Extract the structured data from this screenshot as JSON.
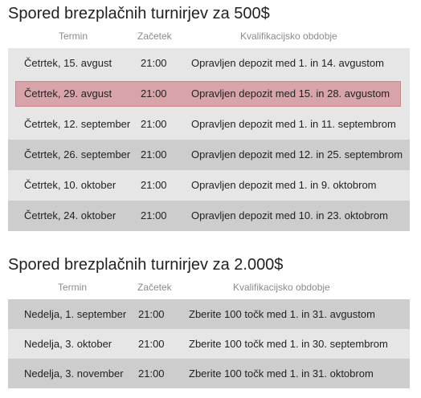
{
  "section1": {
    "title": "Spored brezplačnih turnirjev za 500$",
    "headers": [
      "Termin",
      "Začetek",
      "Kvalifikacijsko obdobje"
    ],
    "rows": [
      {
        "date": "Četrtek, 15. avgust",
        "time": "21:00",
        "period": "Opravljen depozit med 1. in 14. avgustom"
      },
      {
        "date": "Četrtek, 29. avgust",
        "time": "21:00",
        "period": "Opravljen depozit med 15. in 28. avgustom"
      },
      {
        "date": "Četrtek, 12. september",
        "time": "21:00",
        "period": "Opravljen depozit med 1. in 11. septembrom"
      },
      {
        "date": "Četrtek, 26. september",
        "time": "21:00",
        "period": "Opravljen depozit med 12. in 25. septembrom"
      },
      {
        "date": "Četrtek, 10. oktober",
        "time": "21:00",
        "period": "Opravljen depozit med 1. in 9. oktobrom"
      },
      {
        "date": "Četrtek, 24. oktober",
        "time": "21:00",
        "period": "Opravljen depozit med 10. in 23. oktobrom"
      }
    ]
  },
  "section2": {
    "title": "Spored brezplačnih turnirjev za 2.000$",
    "headers": [
      "Termin",
      "Začetek",
      "Kvalifikacijsko obdobje"
    ],
    "rows": [
      {
        "date": "Nedelja, 1. september",
        "time": "21:00",
        "period": "Zberite 100 točk med 1. in 31. avgustom"
      },
      {
        "date": "Nedelja, 3. oktober",
        "time": "21:00",
        "period": "Zberite 100 točk med 1. in 30. septembrom"
      },
      {
        "date": "Nedelja, 3. november",
        "time": "21:00",
        "period": "Zberite 100 točk med 1. in 31. oktobrom"
      }
    ]
  },
  "colors": {
    "row_light": "#e6e6e6",
    "row_dark": "#cdcdcd",
    "highlight": "#d8a4a9"
  }
}
